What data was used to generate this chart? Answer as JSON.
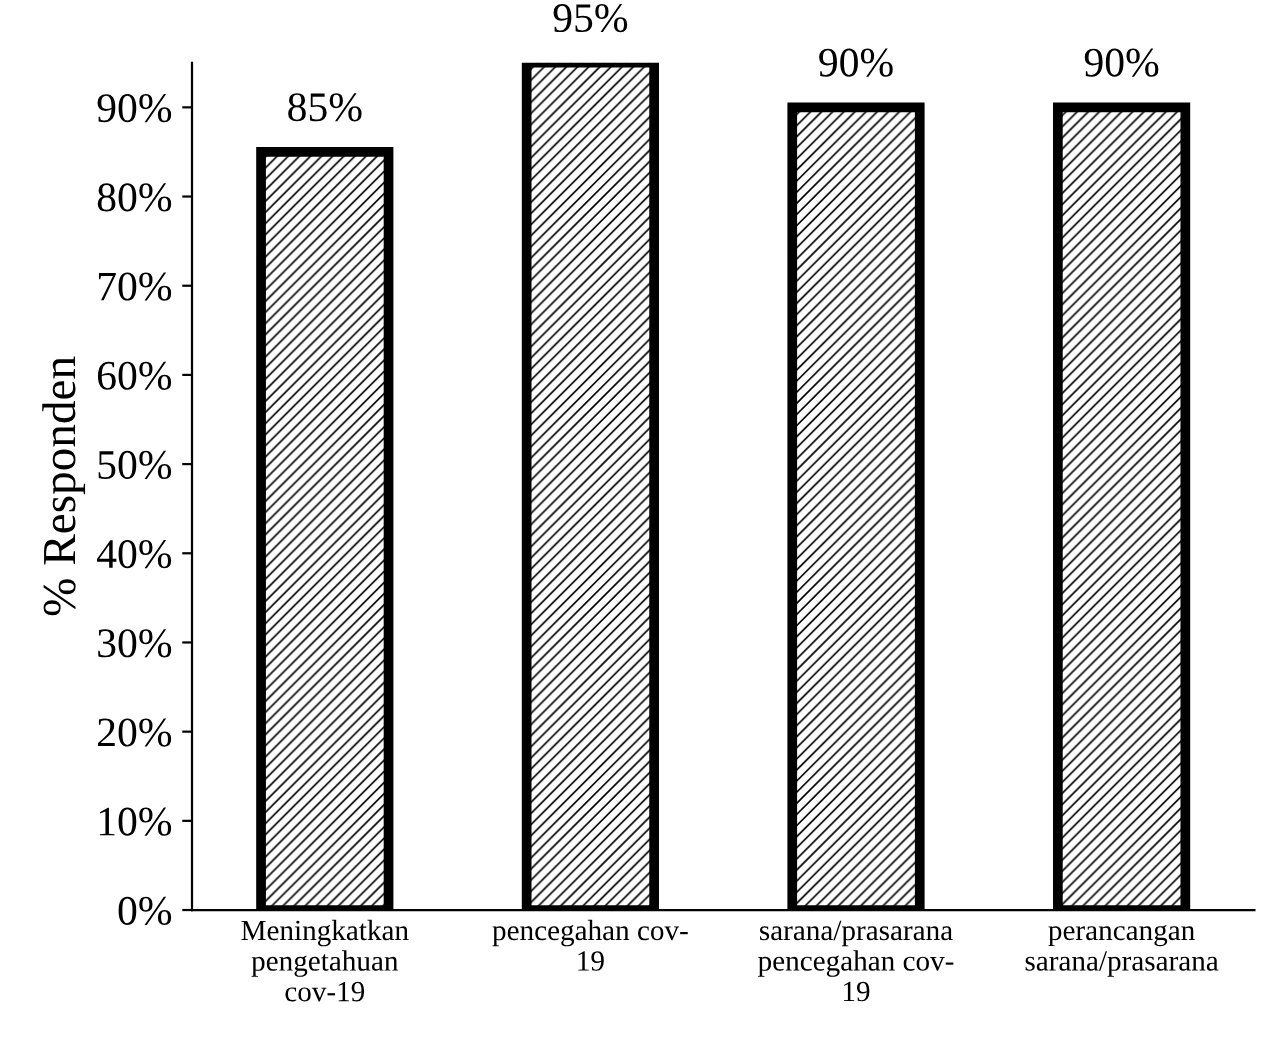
{
  "chart_data": {
    "type": "bar",
    "ylabel": "% Responden",
    "categories": [
      "Meningkatkan\npengetahuan\ncov-19",
      "pencegahan cov-\n19",
      "sarana/prasarana\npencegahan cov-\n19",
      "perancangan\nsarana/prasarana"
    ],
    "values": [
      85,
      95,
      90,
      90
    ],
    "value_labels": [
      "85%",
      "95%",
      "90%",
      "90%"
    ],
    "color": "#000000",
    "ylim": [
      0,
      95
    ],
    "yticks": [
      {
        "value": 0,
        "label": "0%"
      },
      {
        "value": 10,
        "label": "10%"
      },
      {
        "value": 20,
        "label": "20%"
      },
      {
        "value": 30,
        "label": "30%"
      },
      {
        "value": 40,
        "label": "40%"
      },
      {
        "value": 50,
        "label": "50%"
      },
      {
        "value": 60,
        "label": "60%"
      },
      {
        "value": 70,
        "label": "70%"
      },
      {
        "value": 80,
        "label": "80%"
      },
      {
        "value": 90,
        "label": "90%"
      }
    ],
    "grid": false,
    "legend": false
  }
}
